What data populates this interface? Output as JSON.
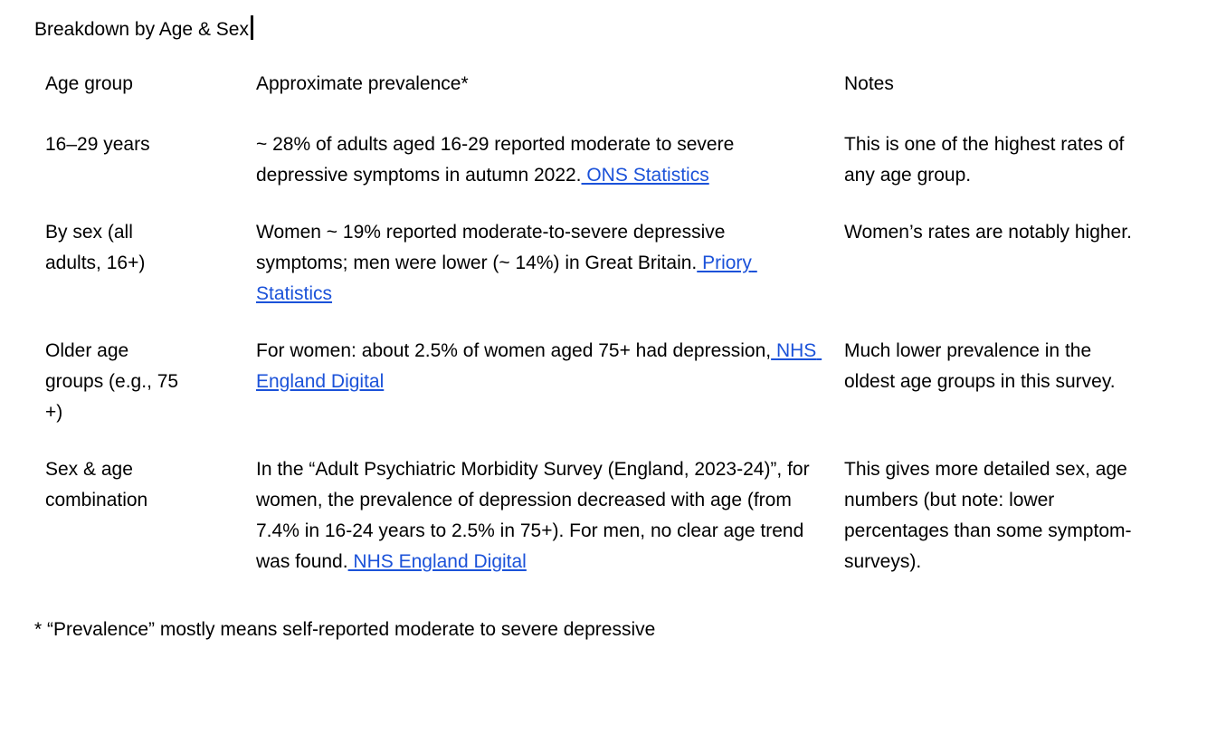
{
  "title": "Breakdown by Age & Sex",
  "colors": {
    "link_blue": "#1b52d9",
    "text": "#000000",
    "background": "#ffffff"
  },
  "table": {
    "headers": {
      "age_group": "Age group",
      "prevalence": "Approximate prevalence*",
      "notes": "Notes"
    },
    "rows": [
      {
        "age_group": "16–29 years",
        "prevalence_text": "~ 28% of adults aged 16-29 reported moderate to severe depressive symptoms in autumn 2022.",
        "prevalence_link": " ONS Statistics",
        "notes": "This is one of the highest rates of any age group."
      },
      {
        "age_group": "By sex (all adults, 16+)",
        "prevalence_text": "Women ~ 19% reported moderate-to-severe depressive symptoms; men were lower (~ 14%) in Great Britain.",
        "prevalence_link": " Priory Statistics",
        "notes": "Women’s rates are notably higher."
      },
      {
        "age_group": "Older age groups (e.g., 75 +)",
        "prevalence_text": "For women: about 2.5% of women aged 75+ had depression,",
        "prevalence_link": " NHS England Digital",
        "notes": "Much lower prevalence in the oldest age groups in this survey."
      },
      {
        "age_group": "Sex & age combination",
        "prevalence_text": "In the “Adult Psychiatric Morbidity Survey (England, 2023-24)”, for women, the prevalence of depression decreased with age (from 7.4% in 16-24 years to 2.5% in 75+). For men, no clear age trend was found.",
        "prevalence_link": " NHS England Digital",
        "notes": "This gives more detailed sex, age numbers (but note: lower percentages than some symptom-surveys)."
      }
    ]
  },
  "footnote": "* “Prevalence” mostly means self-reported moderate to severe depressive"
}
